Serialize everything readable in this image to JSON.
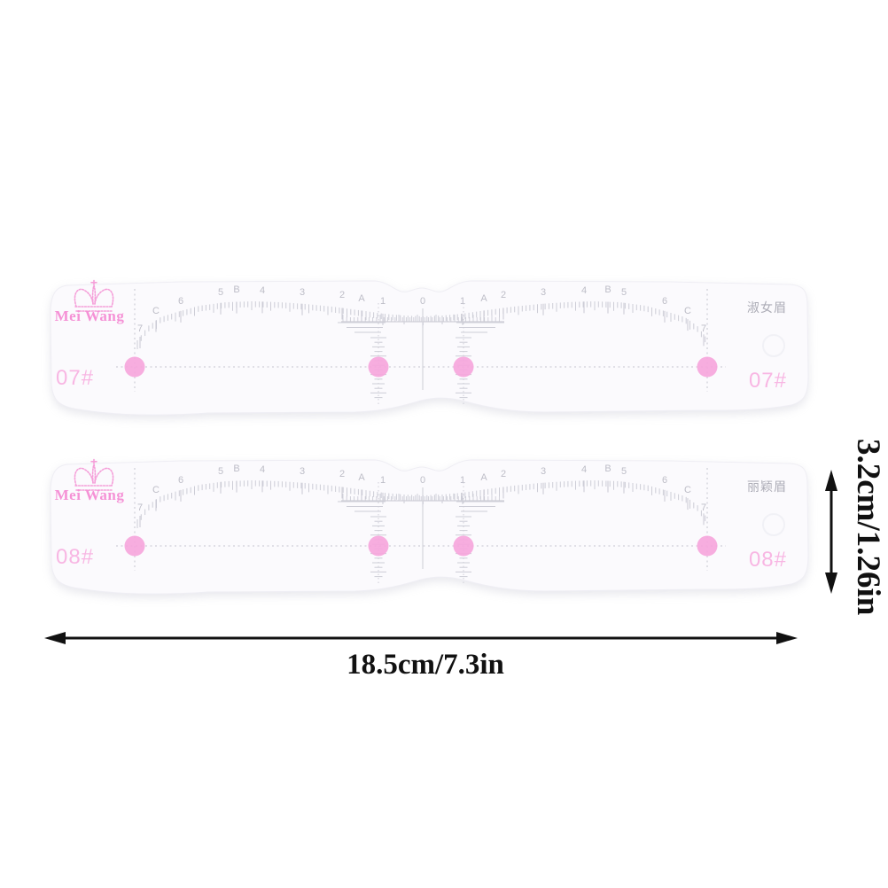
{
  "product": {
    "brand": "Mei Wang",
    "type": "eyebrow-stencil-rulers"
  },
  "colors": {
    "background": "#ffffff",
    "ruler_body": "#fbfafd",
    "tick_gray": "#cdcdd6",
    "scale_label_gray": "#bdbdc7",
    "chinese_gray": "#acacb6",
    "brand_pink": "#f592d6",
    "model_pink": "#f8b6e3",
    "dot_pink": "#f6a6dc",
    "dimension_black": "#111111"
  },
  "rulers": [
    {
      "brand": "Mei Wang",
      "model": "07#",
      "name_cn": "淑女眉",
      "scale_labels": [
        "7",
        "C",
        "6",
        "5",
        "B",
        "4",
        "3",
        "2",
        "A",
        "1",
        "0",
        "1",
        "A",
        "2",
        "3",
        "4",
        "B",
        "5",
        "6",
        "C",
        "7"
      ]
    },
    {
      "brand": "Mei Wang",
      "model": "08#",
      "name_cn": "丽颖眉",
      "scale_labels": [
        "7",
        "C",
        "6",
        "5",
        "B",
        "4",
        "3",
        "2",
        "A",
        "1",
        "0",
        "1",
        "A",
        "2",
        "3",
        "4",
        "B",
        "5",
        "6",
        "C",
        "7"
      ]
    }
  ],
  "dimensions": {
    "width_label": "18.5cm/7.3in",
    "height_label": "3.2cm/1.26in"
  }
}
